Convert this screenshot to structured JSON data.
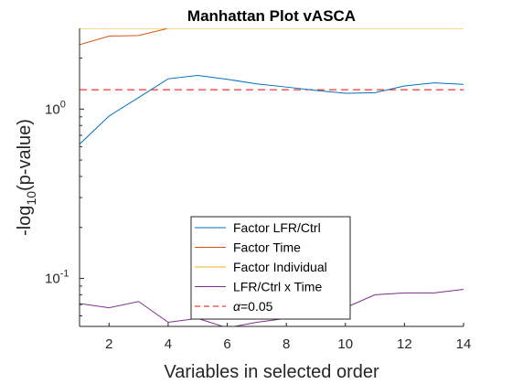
{
  "chart_data": {
    "type": "line",
    "title": "Manhattan Plot vASCA",
    "xlabel": "Variables in selected order",
    "ylabel_main": "-log",
    "ylabel_sub": "10",
    "ylabel_rest": "(p-value)",
    "y_scale": "log",
    "xlim": [
      1,
      14
    ],
    "ylim": [
      0.052,
      3.0
    ],
    "x_ticks": [
      2,
      4,
      6,
      8,
      10,
      12,
      14
    ],
    "y_ticks": [
      {
        "value": 1.0,
        "base": "10",
        "exp": "0"
      },
      {
        "value": 0.1,
        "base": "10",
        "exp": "-1"
      }
    ],
    "grid": false,
    "legend_position": "bottom-center",
    "x": [
      1,
      2,
      3,
      4,
      5,
      6,
      7,
      8,
      9,
      10,
      11,
      12,
      13,
      14
    ],
    "series": [
      {
        "name": "Factor LFR/Ctrl",
        "color": "#0072bd",
        "style": "solid",
        "values": [
          0.62,
          0.91,
          1.17,
          1.51,
          1.58,
          1.5,
          1.41,
          1.35,
          1.29,
          1.24,
          1.25,
          1.37,
          1.43,
          1.4
        ]
      },
      {
        "name": "Factor Time",
        "color": "#d95319",
        "style": "solid",
        "values": [
          2.4,
          2.7,
          2.72,
          3.0,
          3.0,
          3.0,
          3.0,
          3.0,
          3.0,
          3.0,
          3.0,
          3.0,
          3.0,
          3.0
        ]
      },
      {
        "name": "Factor Individual",
        "color": "#edb120",
        "style": "solid",
        "values": [
          3.0,
          3.0,
          3.0,
          3.0,
          3.0,
          3.0,
          3.0,
          3.0,
          3.0,
          3.0,
          3.0,
          3.0,
          3.0,
          3.0
        ]
      },
      {
        "name": "LFR/Ctrl x Time",
        "color": "#7e2f8e",
        "style": "solid",
        "values": [
          0.071,
          0.067,
          0.073,
          0.055,
          0.058,
          0.051,
          0.055,
          0.058,
          0.06,
          0.067,
          0.08,
          0.082,
          0.082,
          0.086
        ]
      }
    ],
    "threshold": {
      "name": "α=0.05",
      "name_symbol": "α",
      "name_rest": "=0.05",
      "value": 1.30103,
      "color": "#ff0000",
      "style": "dashed"
    }
  }
}
